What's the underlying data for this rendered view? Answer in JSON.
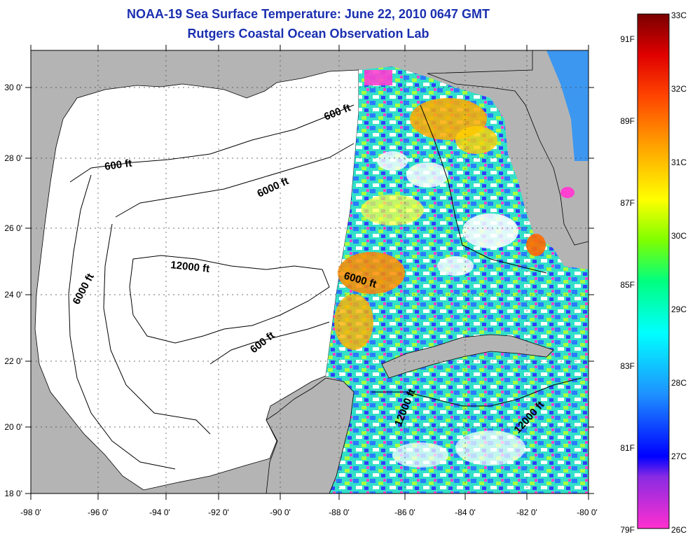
{
  "title": "NOAA-19 Sea Surface Temperature:  June 22, 2010 0647 GMT",
  "subtitle": "Rutgers Coastal Ocean Observation Lab",
  "lon_ticks": [
    "-98 0'",
    "-96 0'",
    "-94 0'",
    "-92 0'",
    "-90 0'",
    "-88 0'",
    "-86 0'",
    "-84 0'",
    "-82 0'",
    "-80 0'"
  ],
  "lat_ticks": [
    "18 0'",
    "20 0'",
    "22 0'",
    "24 0'",
    "26 0'",
    "28 0'",
    "30 0'"
  ],
  "contour_labels": [
    "600 ft",
    "600 ft",
    "6000 ft",
    "12000 ft",
    "6000 ft",
    "6000 ft",
    "600 ft",
    "12000 ft",
    "12000 ft"
  ],
  "colorbar": {
    "celsius": [
      "33C",
      "32C",
      "31C",
      "30C",
      "29C",
      "28C",
      "27C",
      "26C"
    ],
    "fahrenheit": [
      "91F",
      "89F",
      "87F",
      "85F",
      "83F",
      "81F",
      "79F"
    ]
  },
  "colors": {
    "land": "#b4b4b4",
    "cloud": "#ffffff",
    "title": "#1a2fb0"
  }
}
